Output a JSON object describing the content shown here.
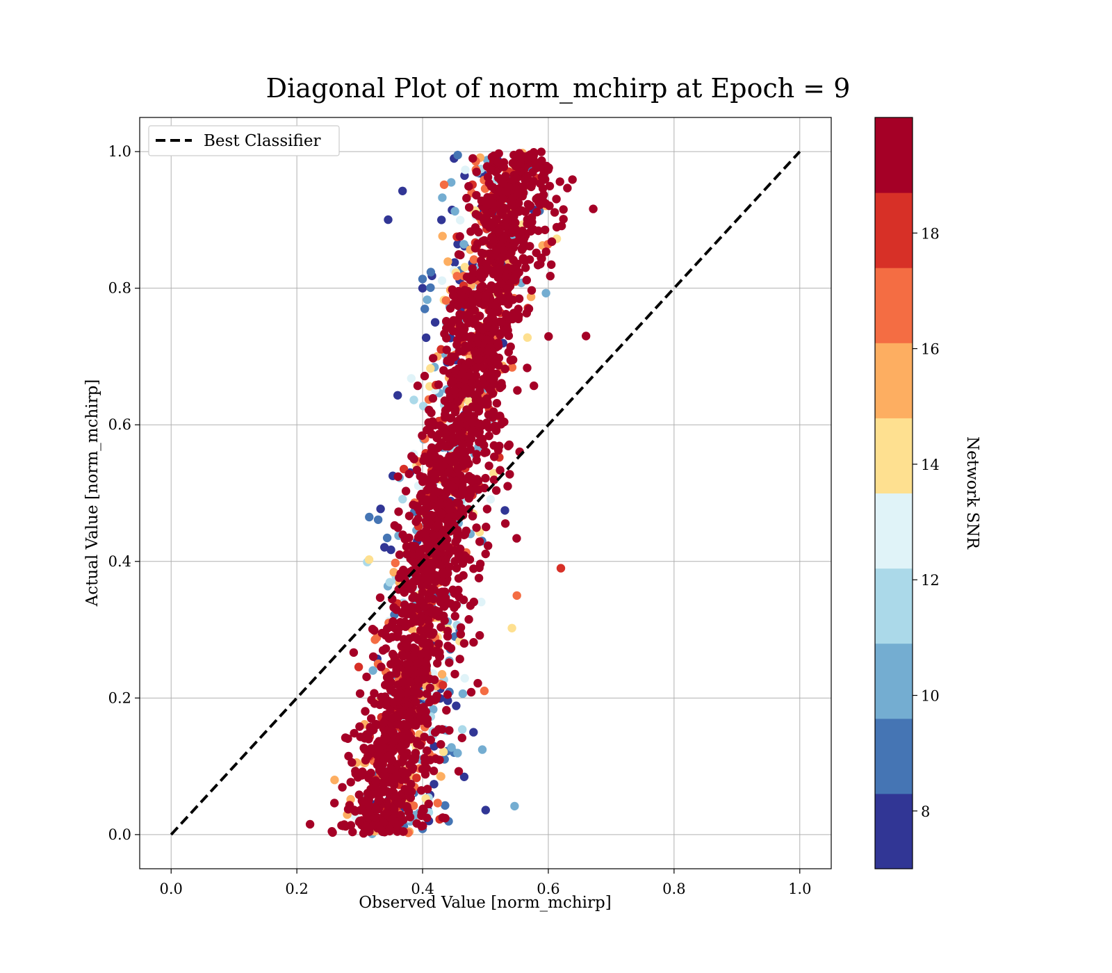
{
  "chart_data": {
    "type": "scatter",
    "title": "Diagonal Plot of norm_mchirp at Epoch = 9",
    "xlabel": "Observed Value [norm_mchirp]",
    "ylabel": "Actual Value [norm_mchirp]",
    "xlim": [
      -0.05,
      1.05
    ],
    "ylim": [
      -0.05,
      1.05
    ],
    "xticks": [
      "0.0",
      "0.2",
      "0.4",
      "0.6",
      "0.8",
      "1.0"
    ],
    "yticks": [
      "0.0",
      "0.2",
      "0.4",
      "0.6",
      "0.8",
      "1.0"
    ],
    "grid": true,
    "legend": {
      "position": "top-left",
      "entries": [
        "Best Classifier"
      ]
    },
    "reference_line": {
      "name": "Best Classifier",
      "style": "dashed",
      "color": "#000000",
      "x": [
        0.0,
        1.0
      ],
      "y": [
        0.0,
        1.0
      ]
    },
    "colorbar": {
      "label": "Network SNR",
      "range": [
        7,
        20
      ],
      "ticks": [
        "8",
        "10",
        "12",
        "14",
        "16",
        "18"
      ],
      "tick_values": [
        8,
        10,
        12,
        14,
        16,
        18
      ],
      "colors": [
        "#313695",
        "#4575b4",
        "#74add1",
        "#abd9e9",
        "#e0f3f8",
        "#fee090",
        "#fdae61",
        "#f46d43",
        "#d73027",
        "#a50026"
      ]
    },
    "point_cloud": {
      "description_of_distribution": "dense band along predicted ≈ 0.33 + 0.24*actual with low-SNR outliers",
      "bands": [
        {
          "y_from": 0.0,
          "y_to": 1.0,
          "x_center_at_y0": 0.32,
          "x_center_at_y1": 0.56,
          "spread": 0.05,
          "snr": 20
        }
      ],
      "points": [
        {
          "x": 0.3,
          "y": 0.02,
          "snr": 20
        },
        {
          "x": 0.33,
          "y": 0.05,
          "snr": 20
        },
        {
          "x": 0.35,
          "y": 0.1,
          "snr": 19
        },
        {
          "x": 0.38,
          "y": 0.18,
          "snr": 20
        },
        {
          "x": 0.4,
          "y": 0.28,
          "snr": 20
        },
        {
          "x": 0.42,
          "y": 0.38,
          "snr": 19
        },
        {
          "x": 0.44,
          "y": 0.46,
          "snr": 20
        },
        {
          "x": 0.47,
          "y": 0.55,
          "snr": 20
        },
        {
          "x": 0.5,
          "y": 0.63,
          "snr": 19
        },
        {
          "x": 0.52,
          "y": 0.72,
          "snr": 20
        },
        {
          "x": 0.55,
          "y": 0.82,
          "snr": 20
        },
        {
          "x": 0.57,
          "y": 0.92,
          "snr": 19
        },
        {
          "x": 0.58,
          "y": 0.98,
          "snr": 20
        },
        {
          "x": 0.41,
          "y": 0.02,
          "snr": 8
        },
        {
          "x": 0.45,
          "y": 0.12,
          "snr": 9
        },
        {
          "x": 0.42,
          "y": 0.75,
          "snr": 7
        },
        {
          "x": 0.4,
          "y": 0.8,
          "snr": 7
        },
        {
          "x": 0.43,
          "y": 0.9,
          "snr": 8
        },
        {
          "x": 0.45,
          "y": 0.99,
          "snr": 7
        },
        {
          "x": 0.38,
          "y": 0.53,
          "snr": 7
        },
        {
          "x": 0.26,
          "y": 0.08,
          "snr": 16
        },
        {
          "x": 0.66,
          "y": 0.73,
          "snr": 20
        },
        {
          "x": 0.62,
          "y": 0.39,
          "snr": 18
        },
        {
          "x": 0.55,
          "y": 0.35,
          "snr": 17
        }
      ]
    }
  }
}
